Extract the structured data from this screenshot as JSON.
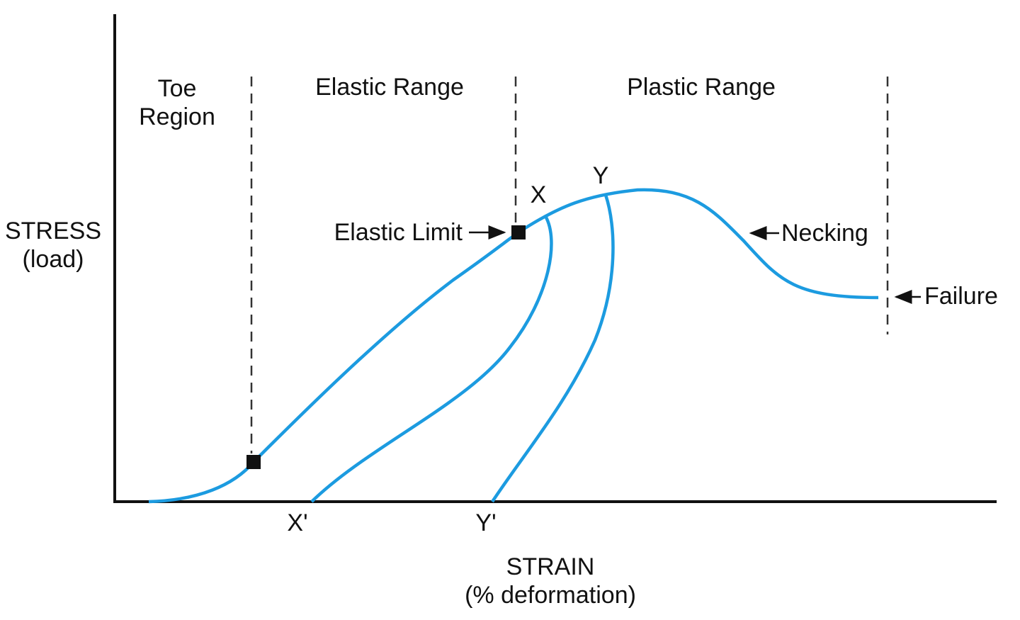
{
  "regions": [
    {
      "label": [
        "Toe",
        "Region"
      ]
    },
    {
      "label": "Elastic Range"
    },
    {
      "label": "Plastic Range"
    }
  ],
  "axes": {
    "y": {
      "label": [
        "STRESS",
        "(load)"
      ]
    },
    "x": {
      "label": [
        "STRAIN",
        "(% deformation)"
      ]
    }
  },
  "points": {
    "x": "X",
    "y": "Y",
    "x_prime": "X'",
    "y_prime": "Y'"
  },
  "annotations": {
    "elastic_limit": "Elastic Limit",
    "necking": "Necking",
    "failure": "Failure"
  }
}
